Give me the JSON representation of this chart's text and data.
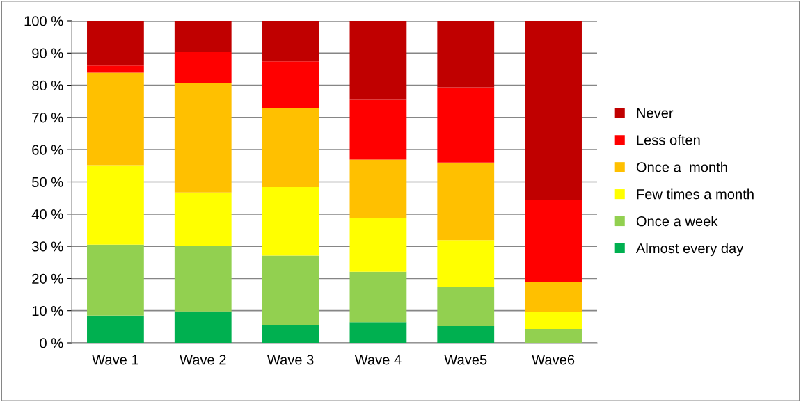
{
  "chart_data": {
    "type": "bar",
    "stacked": true,
    "categories": [
      "Wave 1",
      "Wave 2",
      "Wave 3",
      "Wave 4",
      "Wave5",
      "Wave6"
    ],
    "series": [
      {
        "name": "Almost every day",
        "color": "#00b050",
        "values": [
          8.5,
          9.8,
          5.6,
          6.4,
          5.2,
          0
        ]
      },
      {
        "name": "Once a week",
        "color": "#92d050",
        "values": [
          22.0,
          20.4,
          21.5,
          15.7,
          12.3,
          4.3
        ]
      },
      {
        "name": "Few times a month",
        "color": "#ffff00",
        "values": [
          24.7,
          16.5,
          21.3,
          16.6,
          14.4,
          5.2
        ]
      },
      {
        "name": "Once a  month",
        "color": "#ffc000",
        "values": [
          28.7,
          33.9,
          24.5,
          18.2,
          24.1,
          9.3
        ]
      },
      {
        "name": "Less often",
        "color": "#ff0000",
        "values": [
          2.2,
          9.7,
          14.5,
          18.6,
          23.4,
          25.7
        ]
      },
      {
        "name": "Never",
        "color": "#c00000",
        "values": [
          13.9,
          9.7,
          12.6,
          24.5,
          20.6,
          55.5
        ]
      }
    ],
    "ylim": [
      0,
      100
    ],
    "yticks": [
      {
        "value": 0,
        "label": "0 %"
      },
      {
        "value": 10,
        "label": "10 %"
      },
      {
        "value": 20,
        "label": "20 %"
      },
      {
        "value": 30,
        "label": "30 %"
      },
      {
        "value": 40,
        "label": "40 %"
      },
      {
        "value": 50,
        "label": "50 %"
      },
      {
        "value": 60,
        "label": "60 %"
      },
      {
        "value": 70,
        "label": "70 %"
      },
      {
        "value": 80,
        "label": "80 %"
      },
      {
        "value": 90,
        "label": "90 %"
      },
      {
        "value": 100,
        "label": "100 %"
      }
    ],
    "grid": "y",
    "legend": "right"
  }
}
